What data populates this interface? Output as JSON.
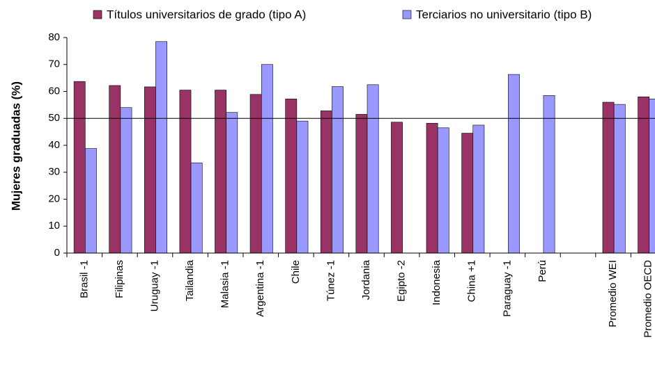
{
  "chart_data": {
    "type": "bar",
    "ylabel": "Mujeres graduadas (%)",
    "categories": [
      "Brasil -1",
      "Filipinas",
      "Uruguay -1",
      "Tailandia",
      "Malasia -1",
      "Argentina -1",
      "Chile",
      "Túnez -1",
      "Jordania",
      "Egipto -2",
      "Indonesia",
      "China +1",
      "Paraguay -1",
      "Perú",
      null,
      "Promedio WEI",
      "Promedio OECD"
    ],
    "series": [
      {
        "name": "Títulos universitarios de grado (tipo A)",
        "color": "#993366",
        "values": [
          63.7,
          62.2,
          61.7,
          60.5,
          60.5,
          58.9,
          57.2,
          52.8,
          51.5,
          48.6,
          48.2,
          44.5,
          null,
          null,
          null,
          56,
          58
        ]
      },
      {
        "name": "Terciarios no universitario (tipo B)",
        "color": "#9999ff",
        "values": [
          38.8,
          54,
          78.5,
          33.5,
          52.2,
          70,
          49,
          61.8,
          62.5,
          null,
          46.5,
          47.5,
          66.3,
          58.5,
          null,
          55.2,
          57.2
        ]
      }
    ],
    "ylim": [
      0,
      80
    ],
    "yticks": [
      0,
      10,
      20,
      30,
      40,
      50,
      60,
      70,
      80
    ],
    "reference_line": 50,
    "grid": false,
    "legend": "top"
  }
}
